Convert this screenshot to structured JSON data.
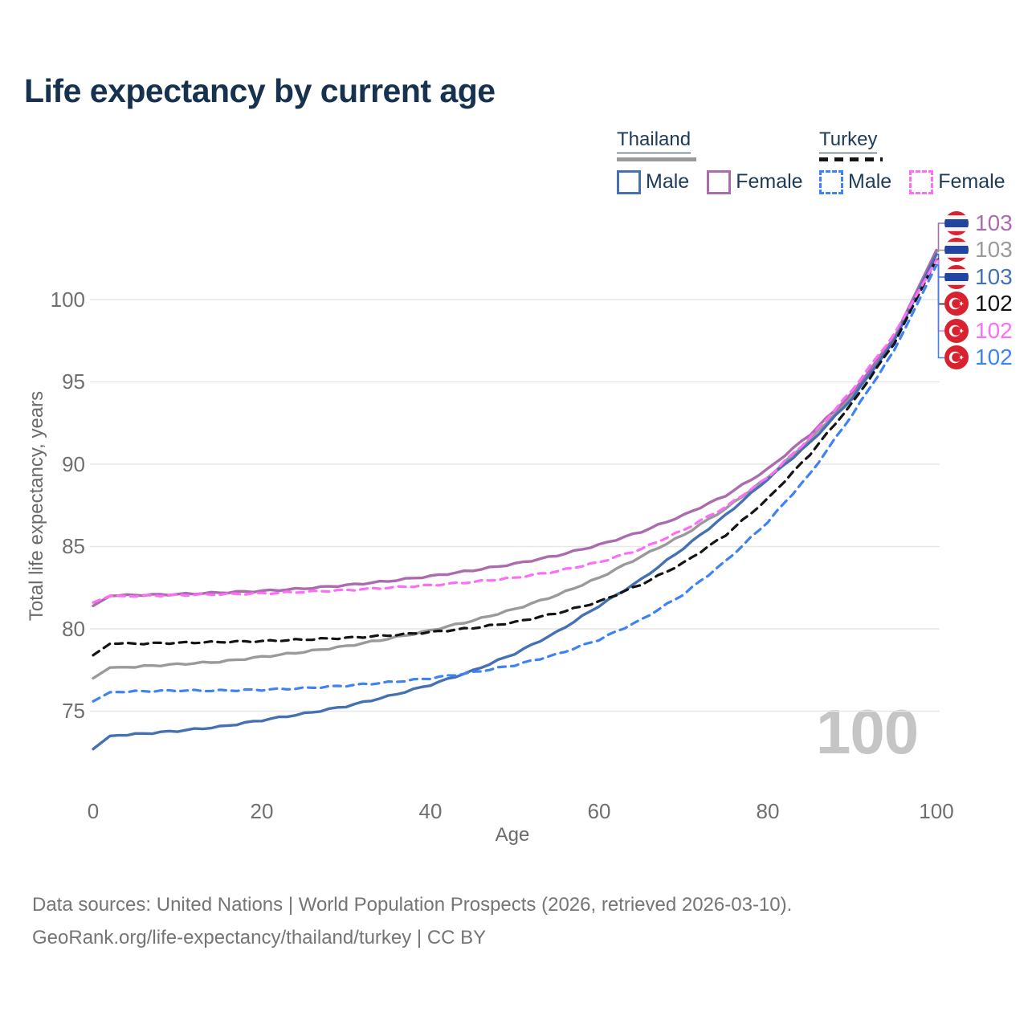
{
  "title": "Life expectancy by current age",
  "legend": {
    "thailand": {
      "label": "Thailand",
      "male_label": "Male",
      "female_label": "Female"
    },
    "turkey": {
      "label": "Turkey",
      "male_label": "Male",
      "female_label": "Female"
    }
  },
  "colors": {
    "title_text": "#16324f",
    "axis_text": "#6f6f6f",
    "grid": "#e7e7e7",
    "watermark": "#c5c5c5",
    "footer_text": "#757575",
    "thailand_male": "#4571b3",
    "thailand_female": "#ab6cae",
    "thailand_all": "#9a9a9a",
    "turkey_male": "#3f82f6",
    "turkey_female": "#fd6ef7",
    "turkey_all": "#141414"
  },
  "chart_data": {
    "type": "line",
    "title": "Life expectancy by current age",
    "xlabel": "Age",
    "ylabel": "Total life expectancy, years",
    "x_ticks": [
      0,
      20,
      40,
      60,
      80,
      100
    ],
    "y_ticks": [
      75,
      80,
      85,
      90,
      95,
      100
    ],
    "xlim": [
      0,
      100
    ],
    "ylim": [
      72,
      104
    ],
    "grid": "horizontal",
    "legend_position": "top-right",
    "watermark": "100",
    "x": [
      0,
      2,
      5,
      10,
      15,
      20,
      25,
      30,
      35,
      40,
      45,
      50,
      55,
      60,
      65,
      70,
      75,
      80,
      85,
      90,
      95,
      100
    ],
    "series": [
      {
        "name": "Thailand Female",
        "country": "Thailand",
        "sex": "Female",
        "dash": false,
        "color": "#ab6cae",
        "values": [
          81.4,
          82.0,
          82.05,
          82.1,
          82.2,
          82.3,
          82.45,
          82.65,
          82.9,
          83.2,
          83.55,
          83.95,
          84.45,
          85.1,
          85.9,
          86.9,
          88.1,
          89.7,
          91.8,
          94.3,
          97.7,
          103.0
        ]
      },
      {
        "name": "Thailand (both sexes)",
        "country": "Thailand",
        "sex": "All",
        "dash": false,
        "color": "#9a9a9a",
        "values": [
          77.0,
          77.65,
          77.7,
          77.85,
          78.0,
          78.3,
          78.6,
          78.95,
          79.4,
          79.9,
          80.5,
          81.2,
          82.05,
          83.1,
          84.4,
          85.7,
          87.3,
          89.2,
          91.5,
          94.1,
          97.6,
          102.9
        ]
      },
      {
        "name": "Thailand Male",
        "country": "Thailand",
        "sex": "Male",
        "dash": false,
        "color": "#4571b3",
        "values": [
          72.7,
          73.5,
          73.6,
          73.8,
          74.05,
          74.45,
          74.85,
          75.3,
          75.9,
          76.6,
          77.45,
          78.5,
          79.8,
          81.4,
          83.0,
          84.9,
          86.9,
          89.1,
          91.3,
          94.0,
          97.5,
          102.75
        ]
      },
      {
        "name": "Turkey (both sexes)",
        "country": "Turkey",
        "sex": "All",
        "dash": true,
        "color": "#141414",
        "values": [
          78.4,
          79.1,
          79.1,
          79.15,
          79.2,
          79.25,
          79.35,
          79.45,
          79.6,
          79.8,
          80.05,
          80.4,
          80.95,
          81.65,
          82.7,
          84.0,
          85.7,
          87.9,
          90.6,
          93.7,
          97.35,
          102.45
        ]
      },
      {
        "name": "Turkey Female",
        "country": "Turkey",
        "sex": "Female",
        "dash": true,
        "color": "#fd6ef7",
        "values": [
          81.6,
          82.0,
          82.0,
          82.05,
          82.1,
          82.15,
          82.25,
          82.35,
          82.5,
          82.65,
          82.85,
          83.1,
          83.5,
          84.05,
          84.85,
          86.0,
          87.4,
          89.2,
          91.6,
          94.5,
          97.9,
          102.4
        ]
      },
      {
        "name": "Turkey Male",
        "country": "Turkey",
        "sex": "Male",
        "dash": true,
        "color": "#3f82f6",
        "values": [
          75.6,
          76.15,
          76.2,
          76.25,
          76.25,
          76.3,
          76.4,
          76.55,
          76.75,
          77.0,
          77.35,
          77.8,
          78.45,
          79.35,
          80.55,
          82.1,
          84.1,
          86.5,
          89.4,
          93.0,
          96.9,
          102.1
        ]
      }
    ],
    "end_labels": [
      {
        "flag": "thailand",
        "value": "103",
        "color": "#ab6cae"
      },
      {
        "flag": "thailand",
        "value": "103",
        "color": "#9a9a9a"
      },
      {
        "flag": "thailand",
        "value": "103",
        "color": "#4571b3"
      },
      {
        "flag": "turkey",
        "value": "102",
        "color": "#141414"
      },
      {
        "flag": "turkey",
        "value": "102",
        "color": "#fd6ef7"
      },
      {
        "flag": "turkey",
        "value": "102",
        "color": "#3f82f6"
      }
    ]
  },
  "footer": {
    "line1": "Data sources: United Nations | World Population Prospects (2026, retrieved 2026-03-10).",
    "line2": "GeoRank.org/life-expectancy/thailand/turkey | CC BY"
  }
}
